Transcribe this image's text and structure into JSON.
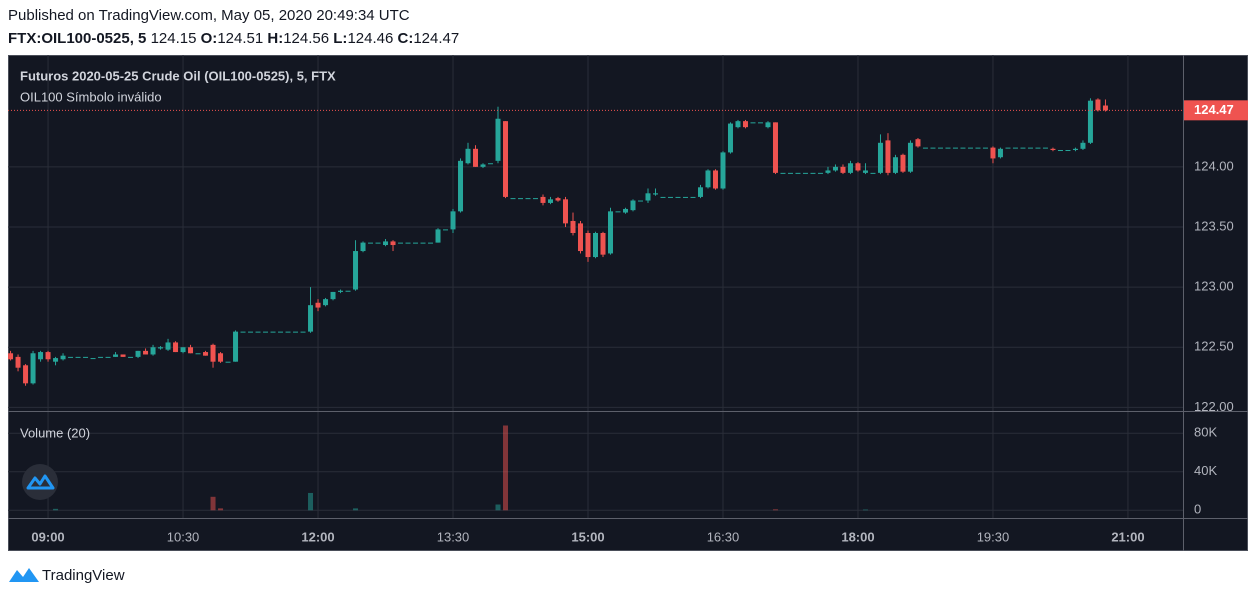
{
  "header": {
    "published": "Published on TradingView.com, May 05, 2020 20:49:34 UTC",
    "symbol": "FTX:OIL100-0525, 5",
    "change": 124.15,
    "ohlc": [
      {
        "label": "O:",
        "value": 124.51
      },
      {
        "label": "H:",
        "value": 124.56
      },
      {
        "label": "L:",
        "value": 124.46
      },
      {
        "label": "C:",
        "value": 124.47
      }
    ]
  },
  "chart_data": {
    "type": "candlestick",
    "title": "Futuros 2020-05-25 Crude Oil (OIL100-0525), 5, FTX",
    "subtitle": "OIL100 Símbolo inválido",
    "volume_title": "Volume (20)",
    "up_color": "#26a69a",
    "down_color": "#ef5350",
    "grid": true,
    "x": [
      515,
      520,
      525,
      530,
      535,
      540,
      545,
      550,
      555,
      560,
      565,
      570,
      575,
      580,
      585,
      590,
      595,
      600,
      605,
      610,
      615,
      620,
      625,
      630,
      635,
      640,
      645,
      650,
      655,
      660,
      665,
      670,
      675,
      680,
      685,
      690,
      695,
      700,
      705,
      710,
      715,
      720,
      725,
      730,
      735,
      740,
      745,
      750,
      755,
      760,
      765,
      770,
      775,
      780,
      785,
      790,
      795,
      800,
      805,
      810,
      815,
      820,
      825,
      830,
      835,
      840,
      845,
      850,
      855,
      860,
      865,
      870,
      875,
      880,
      885,
      890,
      895,
      900,
      905,
      910,
      915,
      920,
      925,
      930,
      935,
      940,
      945,
      950,
      955,
      960,
      965,
      970,
      975,
      980,
      985,
      990,
      995,
      1000,
      1005,
      1010,
      1015,
      1020,
      1025,
      1030,
      1035,
      1040,
      1045,
      1050,
      1055,
      1060,
      1065,
      1070,
      1075,
      1080,
      1085,
      1090,
      1095,
      1100,
      1105,
      1110,
      1115,
      1120,
      1125,
      1130,
      1135,
      1140,
      1145,
      1150,
      1155,
      1160,
      1165,
      1170,
      1175,
      1180,
      1185,
      1190,
      1195,
      1200,
      1205,
      1210,
      1215,
      1220,
      1225,
      1230,
      1235,
      1240,
      1245
    ],
    "open": [
      122.45,
      122.42,
      122.35,
      122.2,
      122.4,
      122.46,
      122.38,
      122.4,
      122.42,
      122.42,
      122.42,
      122.41,
      122.42,
      122.42,
      122.42,
      122.44,
      122.42,
      122.42,
      122.47,
      122.44,
      122.49,
      122.48,
      122.54,
      122.46,
      122.5,
      122.45,
      122.46,
      122.52,
      122.45,
      122.38,
      122.38,
      122.63,
      122.63,
      122.63,
      122.63,
      122.63,
      122.63,
      122.63,
      122.63,
      122.63,
      122.63,
      122.87,
      122.85,
      122.9,
      122.96,
      122.97,
      122.98,
      123.3,
      123.37,
      123.37,
      123.35,
      123.38,
      123.37,
      123.37,
      123.37,
      123.37,
      123.37,
      123.37,
      123.48,
      123.48,
      123.63,
      124.03,
      124.15,
      124.0,
      124.03,
      124.05,
      124.38,
      123.74,
      123.74,
      123.74,
      123.74,
      123.75,
      123.7,
      123.74,
      123.73,
      123.55,
      123.53,
      123.45,
      123.25,
      123.45,
      123.28,
      123.63,
      123.62,
      123.64,
      123.72,
      123.72,
      123.77,
      123.75,
      123.75,
      123.75,
      123.75,
      123.75,
      123.75,
      123.83,
      123.97,
      123.82,
      124.12,
      124.33,
      124.38,
      124.37,
      124.37,
      124.33,
      124.37,
      123.95,
      123.95,
      123.95,
      123.95,
      123.95,
      123.95,
      123.95,
      123.97,
      124.0,
      123.95,
      124.03,
      123.95,
      123.95,
      123.95,
      124.22,
      123.95,
      124.1,
      123.96,
      124.23,
      124.16,
      124.16,
      124.16,
      124.16,
      124.16,
      124.16,
      124.16,
      124.16,
      124.16,
      124.16,
      124.08,
      124.16,
      124.16,
      124.16,
      124.16,
      124.16,
      124.16,
      124.15,
      124.14,
      124.14,
      124.14,
      124.15,
      124.2,
      124.56,
      124.51
    ],
    "high": [
      122.47,
      122.44,
      122.36,
      122.47,
      122.47,
      122.47,
      122.42,
      122.45,
      122.42,
      122.42,
      122.42,
      122.41,
      122.42,
      122.42,
      122.46,
      122.44,
      122.42,
      122.47,
      122.49,
      122.52,
      122.51,
      122.57,
      122.55,
      122.5,
      122.52,
      122.45,
      122.47,
      122.53,
      122.46,
      122.38,
      122.64,
      122.63,
      122.63,
      122.63,
      122.63,
      122.63,
      122.63,
      122.63,
      122.63,
      122.63,
      123.0,
      122.9,
      122.91,
      122.96,
      122.98,
      122.97,
      123.39,
      123.38,
      123.37,
      123.37,
      123.4,
      123.39,
      123.37,
      123.37,
      123.37,
      123.37,
      123.37,
      123.49,
      123.48,
      123.65,
      124.07,
      124.2,
      124.18,
      124.03,
      124.03,
      124.5,
      124.38,
      123.74,
      123.74,
      123.74,
      123.74,
      123.77,
      123.75,
      123.75,
      123.75,
      123.62,
      123.55,
      123.47,
      123.46,
      123.46,
      123.66,
      123.63,
      123.66,
      123.73,
      123.72,
      123.82,
      123.82,
      123.75,
      123.75,
      123.75,
      123.75,
      123.75,
      123.85,
      123.98,
      123.98,
      124.13,
      124.37,
      124.39,
      124.39,
      124.37,
      124.37,
      124.38,
      124.37,
      123.95,
      123.95,
      123.95,
      123.95,
      123.95,
      123.95,
      124.0,
      124.02,
      124.02,
      124.05,
      124.04,
      124.03,
      123.95,
      124.27,
      124.28,
      124.1,
      124.11,
      124.22,
      124.24,
      124.16,
      124.16,
      124.16,
      124.16,
      124.16,
      124.16,
      124.16,
      124.16,
      124.16,
      124.17,
      124.16,
      124.16,
      124.16,
      124.16,
      124.16,
      124.16,
      124.16,
      124.16,
      124.14,
      124.14,
      124.16,
      124.22,
      124.57,
      124.57,
      124.56
    ],
    "low": [
      122.39,
      122.3,
      122.18,
      122.19,
      122.38,
      122.38,
      122.35,
      122.39,
      122.42,
      122.42,
      122.42,
      122.41,
      122.42,
      122.42,
      122.42,
      122.42,
      122.42,
      122.41,
      122.44,
      122.43,
      122.48,
      122.47,
      122.46,
      122.45,
      122.45,
      122.45,
      122.43,
      122.33,
      122.37,
      122.38,
      122.38,
      122.63,
      122.63,
      122.63,
      122.63,
      122.63,
      122.63,
      122.63,
      122.63,
      122.63,
      122.62,
      122.8,
      122.84,
      122.89,
      122.95,
      122.97,
      122.97,
      123.29,
      123.37,
      123.37,
      123.34,
      123.3,
      123.37,
      123.37,
      123.37,
      123.37,
      123.37,
      123.37,
      123.48,
      123.45,
      123.62,
      124.02,
      124.0,
      123.99,
      124.03,
      124.03,
      123.74,
      123.74,
      123.74,
      123.74,
      123.74,
      123.68,
      123.69,
      123.71,
      123.5,
      123.43,
      123.28,
      123.21,
      123.24,
      123.25,
      123.27,
      123.63,
      123.61,
      123.63,
      123.72,
      123.7,
      123.76,
      123.75,
      123.75,
      123.75,
      123.75,
      123.75,
      123.74,
      123.82,
      123.81,
      123.81,
      124.11,
      124.32,
      124.32,
      124.37,
      124.37,
      124.32,
      123.94,
      123.95,
      123.95,
      123.95,
      123.95,
      123.95,
      123.95,
      123.94,
      123.96,
      123.94,
      123.94,
      123.96,
      123.94,
      123.95,
      123.94,
      123.93,
      123.94,
      123.95,
      123.95,
      124.16,
      124.16,
      124.16,
      124.16,
      124.16,
      124.16,
      124.16,
      124.16,
      124.16,
      124.16,
      124.03,
      124.07,
      124.16,
      124.16,
      124.16,
      124.16,
      124.16,
      124.16,
      124.13,
      124.14,
      124.14,
      124.13,
      124.14,
      124.19,
      124.46,
      124.46
    ],
    "close": [
      122.4,
      122.33,
      122.2,
      122.45,
      122.46,
      122.4,
      122.41,
      122.43,
      122.42,
      122.42,
      122.42,
      122.41,
      122.42,
      122.42,
      122.44,
      122.42,
      122.42,
      122.47,
      122.44,
      122.5,
      122.5,
      122.54,
      122.46,
      122.5,
      122.45,
      122.45,
      122.43,
      122.38,
      122.38,
      122.38,
      122.63,
      122.63,
      122.63,
      122.63,
      122.63,
      122.63,
      122.63,
      122.63,
      122.63,
      122.63,
      122.85,
      122.83,
      122.9,
      122.96,
      122.97,
      122.97,
      123.3,
      123.37,
      123.37,
      123.37,
      123.38,
      123.35,
      123.37,
      123.37,
      123.37,
      123.37,
      123.37,
      123.48,
      123.48,
      123.63,
      124.05,
      124.15,
      124.0,
      124.02,
      124.03,
      124.4,
      123.75,
      123.74,
      123.74,
      123.74,
      123.74,
      123.7,
      123.73,
      123.72,
      123.53,
      123.45,
      123.3,
      123.25,
      123.45,
      123.27,
      123.63,
      123.63,
      123.65,
      123.72,
      123.72,
      123.78,
      123.78,
      123.75,
      123.75,
      123.75,
      123.75,
      123.75,
      123.83,
      123.97,
      123.82,
      124.12,
      124.36,
      124.38,
      124.33,
      124.37,
      124.37,
      124.37,
      123.95,
      123.95,
      123.95,
      123.95,
      123.95,
      123.95,
      123.95,
      123.97,
      124.0,
      123.95,
      124.03,
      123.97,
      123.97,
      123.95,
      124.2,
      123.95,
      124.08,
      123.96,
      124.2,
      124.17,
      124.16,
      124.16,
      124.16,
      124.16,
      124.16,
      124.16,
      124.16,
      124.16,
      124.16,
      124.07,
      124.15,
      124.16,
      124.16,
      124.16,
      124.16,
      124.16,
      124.16,
      124.14,
      124.14,
      124.14,
      124.15,
      124.2,
      124.55,
      124.47,
      124.47
    ],
    "volume": [
      0,
      0,
      0,
      0,
      0,
      0,
      1500,
      0,
      0,
      0,
      0,
      0,
      0,
      0,
      0,
      0,
      0,
      0,
      0,
      0,
      0,
      0,
      0,
      0,
      0,
      0,
      0,
      14000,
      2000,
      0,
      0,
      0,
      0,
      0,
      0,
      0,
      0,
      0,
      0,
      0,
      18000,
      0,
      0,
      0,
      0,
      0,
      2000,
      0,
      0,
      0,
      0,
      0,
      0,
      0,
      0,
      0,
      0,
      0,
      0,
      0,
      0,
      0,
      0,
      0,
      0,
      6000,
      88000,
      0,
      0,
      0,
      0,
      0,
      0,
      0,
      0,
      0,
      0,
      0,
      0,
      0,
      0,
      0,
      0,
      0,
      0,
      0,
      0,
      0,
      0,
      0,
      0,
      0,
      0,
      0,
      0,
      0,
      0,
      0,
      0,
      0,
      0,
      0,
      1000,
      0,
      0,
      0,
      0,
      0,
      0,
      0,
      0,
      0,
      0,
      0,
      800,
      0,
      0,
      0,
      0,
      0,
      0,
      0,
      0,
      0,
      0,
      0,
      0,
      0,
      0,
      0,
      0,
      0,
      0,
      0,
      0,
      0,
      0,
      0,
      0,
      0,
      0,
      0,
      0,
      0,
      0,
      0,
      0
    ],
    "xlim": [
      513.3,
      1296.7
    ],
    "xticks": [
      {
        "value": 540,
        "label": "09:00"
      },
      {
        "value": 630,
        "label": "10:30"
      },
      {
        "value": 720,
        "label": "12:00"
      },
      {
        "value": 810,
        "label": "13:30"
      },
      {
        "value": 900,
        "label": "15:00"
      },
      {
        "value": 990,
        "label": "16:30"
      },
      {
        "value": 1080,
        "label": "18:00"
      },
      {
        "value": 1170,
        "label": "19:30"
      },
      {
        "value": 1260,
        "label": "21:00"
      }
    ],
    "ylim": [
      121.97,
      124.93
    ],
    "yticks": [
      {
        "value": 122,
        "label": "122.00"
      },
      {
        "value": 122.5,
        "label": "122.50"
      },
      {
        "value": 123,
        "label": "123.00"
      },
      {
        "value": 123.5,
        "label": "123.50"
      },
      {
        "value": 124,
        "label": "124.00"
      }
    ],
    "y2lim": [
      -8000,
      102000
    ],
    "y2ticks": [
      0,
      {
        "value": 40000,
        "label": "40K"
      },
      {
        "value": 80000,
        "label": "80K"
      }
    ]
  },
  "footer": {
    "brand": "TradingView"
  }
}
